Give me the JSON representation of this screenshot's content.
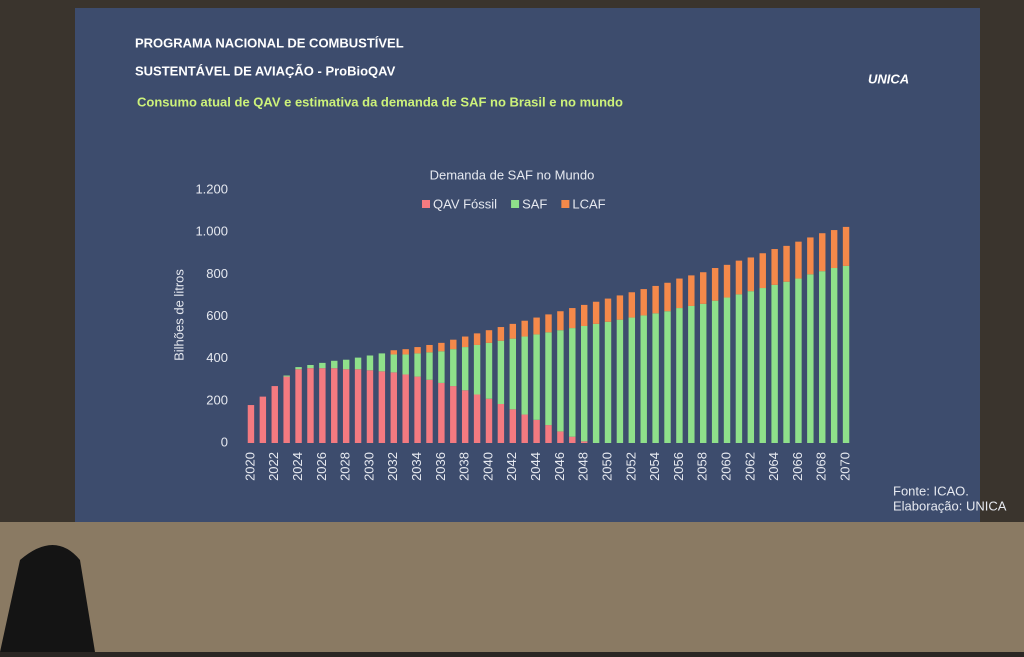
{
  "slide": {
    "title_line1": "PROGRAMA NACIONAL DE COMBUSTÍVEL",
    "title_line2": "SUSTENTÁVEL DE AVIAÇÃO - ProBioQAV",
    "subtitle": "Consumo atual de QAV e estimativa da demanda de SAF no Brasil e no mundo",
    "logo": "UNICA",
    "source": "Fonte: ICAO.",
    "credit": "Elaboração: UNICA"
  },
  "chart_data": {
    "type": "stacked_bar",
    "title": "Demanda de SAF no Mundo",
    "y_label": "Bilhões de litros",
    "categories": [
      "2020",
      null,
      "2022",
      null,
      "2024",
      null,
      "2026",
      null,
      "2028",
      null,
      "2030",
      null,
      "2032",
      null,
      "2034",
      null,
      "2036",
      null,
      "2038",
      null,
      "2040",
      null,
      "2042",
      null,
      "2044",
      null,
      "2046",
      null,
      "2048",
      null,
      "2050",
      null,
      "2052",
      null,
      "2054",
      null,
      "2056",
      null,
      "2058",
      null,
      "2060",
      null,
      "2062",
      null,
      "2064",
      null,
      "2066",
      null,
      "2068",
      null,
      "2070"
    ],
    "series": [
      {
        "name": "QAV Fóssil",
        "color": "#f47a80",
        "values": [
          180,
          220,
          270,
          315,
          350,
          355,
          355,
          355,
          350,
          350,
          345,
          340,
          335,
          325,
          315,
          300,
          285,
          270,
          250,
          230,
          210,
          185,
          160,
          135,
          110,
          85,
          55,
          30,
          8,
          0,
          0,
          0,
          0,
          0,
          0,
          0,
          0,
          0,
          0,
          0,
          0,
          0,
          0,
          0,
          0,
          0,
          0,
          0,
          0,
          0,
          0
        ]
      },
      {
        "name": "SAF",
        "color": "#8fe08a",
        "values": [
          0,
          0,
          0,
          5,
          10,
          15,
          25,
          35,
          45,
          55,
          70,
          85,
          85,
          95,
          110,
          130,
          150,
          175,
          205,
          235,
          265,
          300,
          335,
          370,
          405,
          440,
          480,
          515,
          547,
          565,
          575,
          585,
          595,
          605,
          615,
          625,
          640,
          650,
          660,
          675,
          690,
          705,
          720,
          735,
          750,
          765,
          780,
          800,
          815,
          830,
          840
        ]
      },
      {
        "name": "LCAF",
        "color": "#f5894a",
        "values": [
          0,
          0,
          0,
          0,
          0,
          0,
          0,
          0,
          0,
          0,
          0,
          0,
          20,
          25,
          30,
          35,
          40,
          45,
          50,
          55,
          60,
          65,
          70,
          75,
          80,
          85,
          90,
          95,
          100,
          105,
          110,
          115,
          120,
          125,
          130,
          135,
          140,
          145,
          150,
          155,
          155,
          160,
          160,
          165,
          170,
          170,
          175,
          175,
          180,
          180,
          185
        ]
      }
    ],
    "ylim": [
      0,
      1200
    ],
    "yticks": [
      0,
      200,
      400,
      600,
      800,
      {
        "value": 1000,
        "label": "1.000"
      },
      {
        "value": 1200,
        "label": "1.200"
      }
    ]
  }
}
